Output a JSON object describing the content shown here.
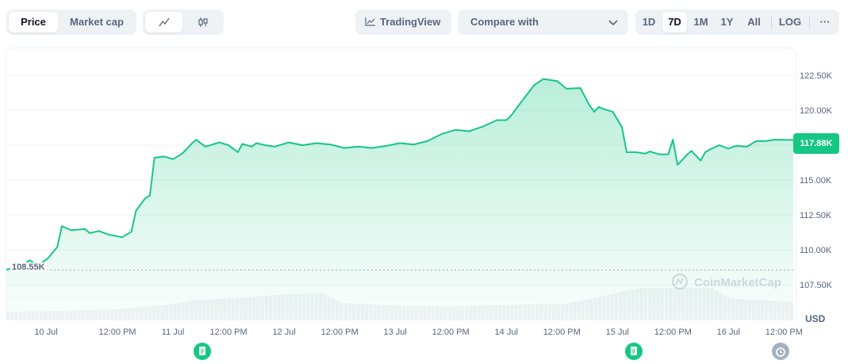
{
  "tabs": {
    "price": "Price",
    "market_cap": "Market cap"
  },
  "chart_style_toggle": {
    "line_icon": "line-chart-icon",
    "candle_icon": "candlestick-icon"
  },
  "tradingview": {
    "label": "TradingView",
    "icon": "tradingview-icon"
  },
  "compare": {
    "label": "Compare with"
  },
  "ranges": [
    "1D",
    "7D",
    "1M",
    "1Y",
    "All"
  ],
  "active_range": "7D",
  "log_label": "LOG",
  "more_label": "···",
  "watermark": "CoinMarketCap",
  "currency": "USD",
  "current_price_label": "117.88K",
  "start_price_label": "108.55K",
  "colors": {
    "line": "#16c784",
    "accent_bg": "#16c784",
    "text_muted": "#58667e"
  },
  "chart_data": {
    "type": "area",
    "ylim": [
      105000,
      124500
    ],
    "y_ticks": [
      "122.50K",
      "120.00K",
      "117.50K",
      "115.00K",
      "112.50K",
      "110.00K",
      "107.50K"
    ],
    "y_tick_values": [
      122500,
      120000,
      117500,
      115000,
      112500,
      110000,
      107500
    ],
    "x_ticks": [
      "10 Jul",
      "12:00 PM",
      "11 Jul",
      "12:00 PM",
      "12 Jul",
      "12:00 PM",
      "13 Jul",
      "12:00 PM",
      "14 Jul",
      "12:00 PM",
      "15 Jul",
      "12:00 PM",
      "16 Jul",
      "12:00 PM"
    ],
    "x_tick_hours": [
      12,
      24,
      36,
      48,
      60,
      72,
      84,
      96,
      108,
      120,
      132,
      144,
      156,
      168
    ],
    "baseline": 108550,
    "current": 117880,
    "series": [
      {
        "hours": [
          0,
          3,
          5,
          7,
          8,
          9,
          11,
          12,
          14,
          17,
          18,
          20,
          22,
          25,
          27,
          28,
          30,
          31,
          32,
          34,
          36,
          38,
          40,
          41,
          43,
          46,
          48,
          50,
          51,
          53,
          54,
          56,
          58,
          61,
          64,
          67,
          70,
          73,
          76,
          79,
          82,
          85,
          88,
          91,
          94,
          97,
          100,
          103,
          106,
          108,
          109,
          111,
          114,
          116,
          119,
          121,
          124,
          126,
          127,
          128,
          129,
          130,
          131,
          133,
          134,
          136,
          138,
          139,
          141,
          143,
          144,
          145,
          147,
          148,
          150,
          151,
          152,
          154,
          156,
          157,
          158,
          160,
          162,
          164,
          166,
          168,
          170
        ],
        "values": [
          108600,
          108700,
          109250,
          108850,
          109150,
          109400,
          110200,
          111700,
          111400,
          111500,
          111200,
          111350,
          111100,
          110900,
          111300,
          112800,
          113700,
          113900,
          116600,
          116700,
          116500,
          116900,
          117600,
          117900,
          117400,
          117700,
          117500,
          117000,
          117600,
          117400,
          117650,
          117500,
          117400,
          117700,
          117500,
          117650,
          117550,
          117300,
          117400,
          117300,
          117450,
          117650,
          117550,
          117800,
          118300,
          118600,
          118500,
          118850,
          119300,
          119300,
          119600,
          120500,
          121800,
          122250,
          122100,
          121550,
          121600,
          120350,
          119900,
          120250,
          120100,
          120000,
          119900,
          118800,
          117000,
          117000,
          116900,
          117050,
          116850,
          116850,
          117900,
          116100,
          116800,
          117100,
          116400,
          117000,
          117200,
          117500,
          117250,
          117400,
          117450,
          117400,
          117800,
          117800,
          117900,
          117880,
          117880
        ]
      }
    ],
    "volume": {
      "hours": [
        0,
        12,
        24,
        36,
        40,
        48,
        60,
        68,
        72,
        84,
        96,
        108,
        120,
        126,
        132,
        136,
        144,
        152,
        156,
        168,
        170
      ],
      "levels": [
        0.18,
        0.2,
        0.24,
        0.36,
        0.45,
        0.48,
        0.58,
        0.6,
        0.38,
        0.32,
        0.3,
        0.34,
        0.36,
        0.48,
        0.62,
        0.72,
        0.73,
        0.72,
        0.48,
        0.42,
        0.38
      ]
    }
  }
}
